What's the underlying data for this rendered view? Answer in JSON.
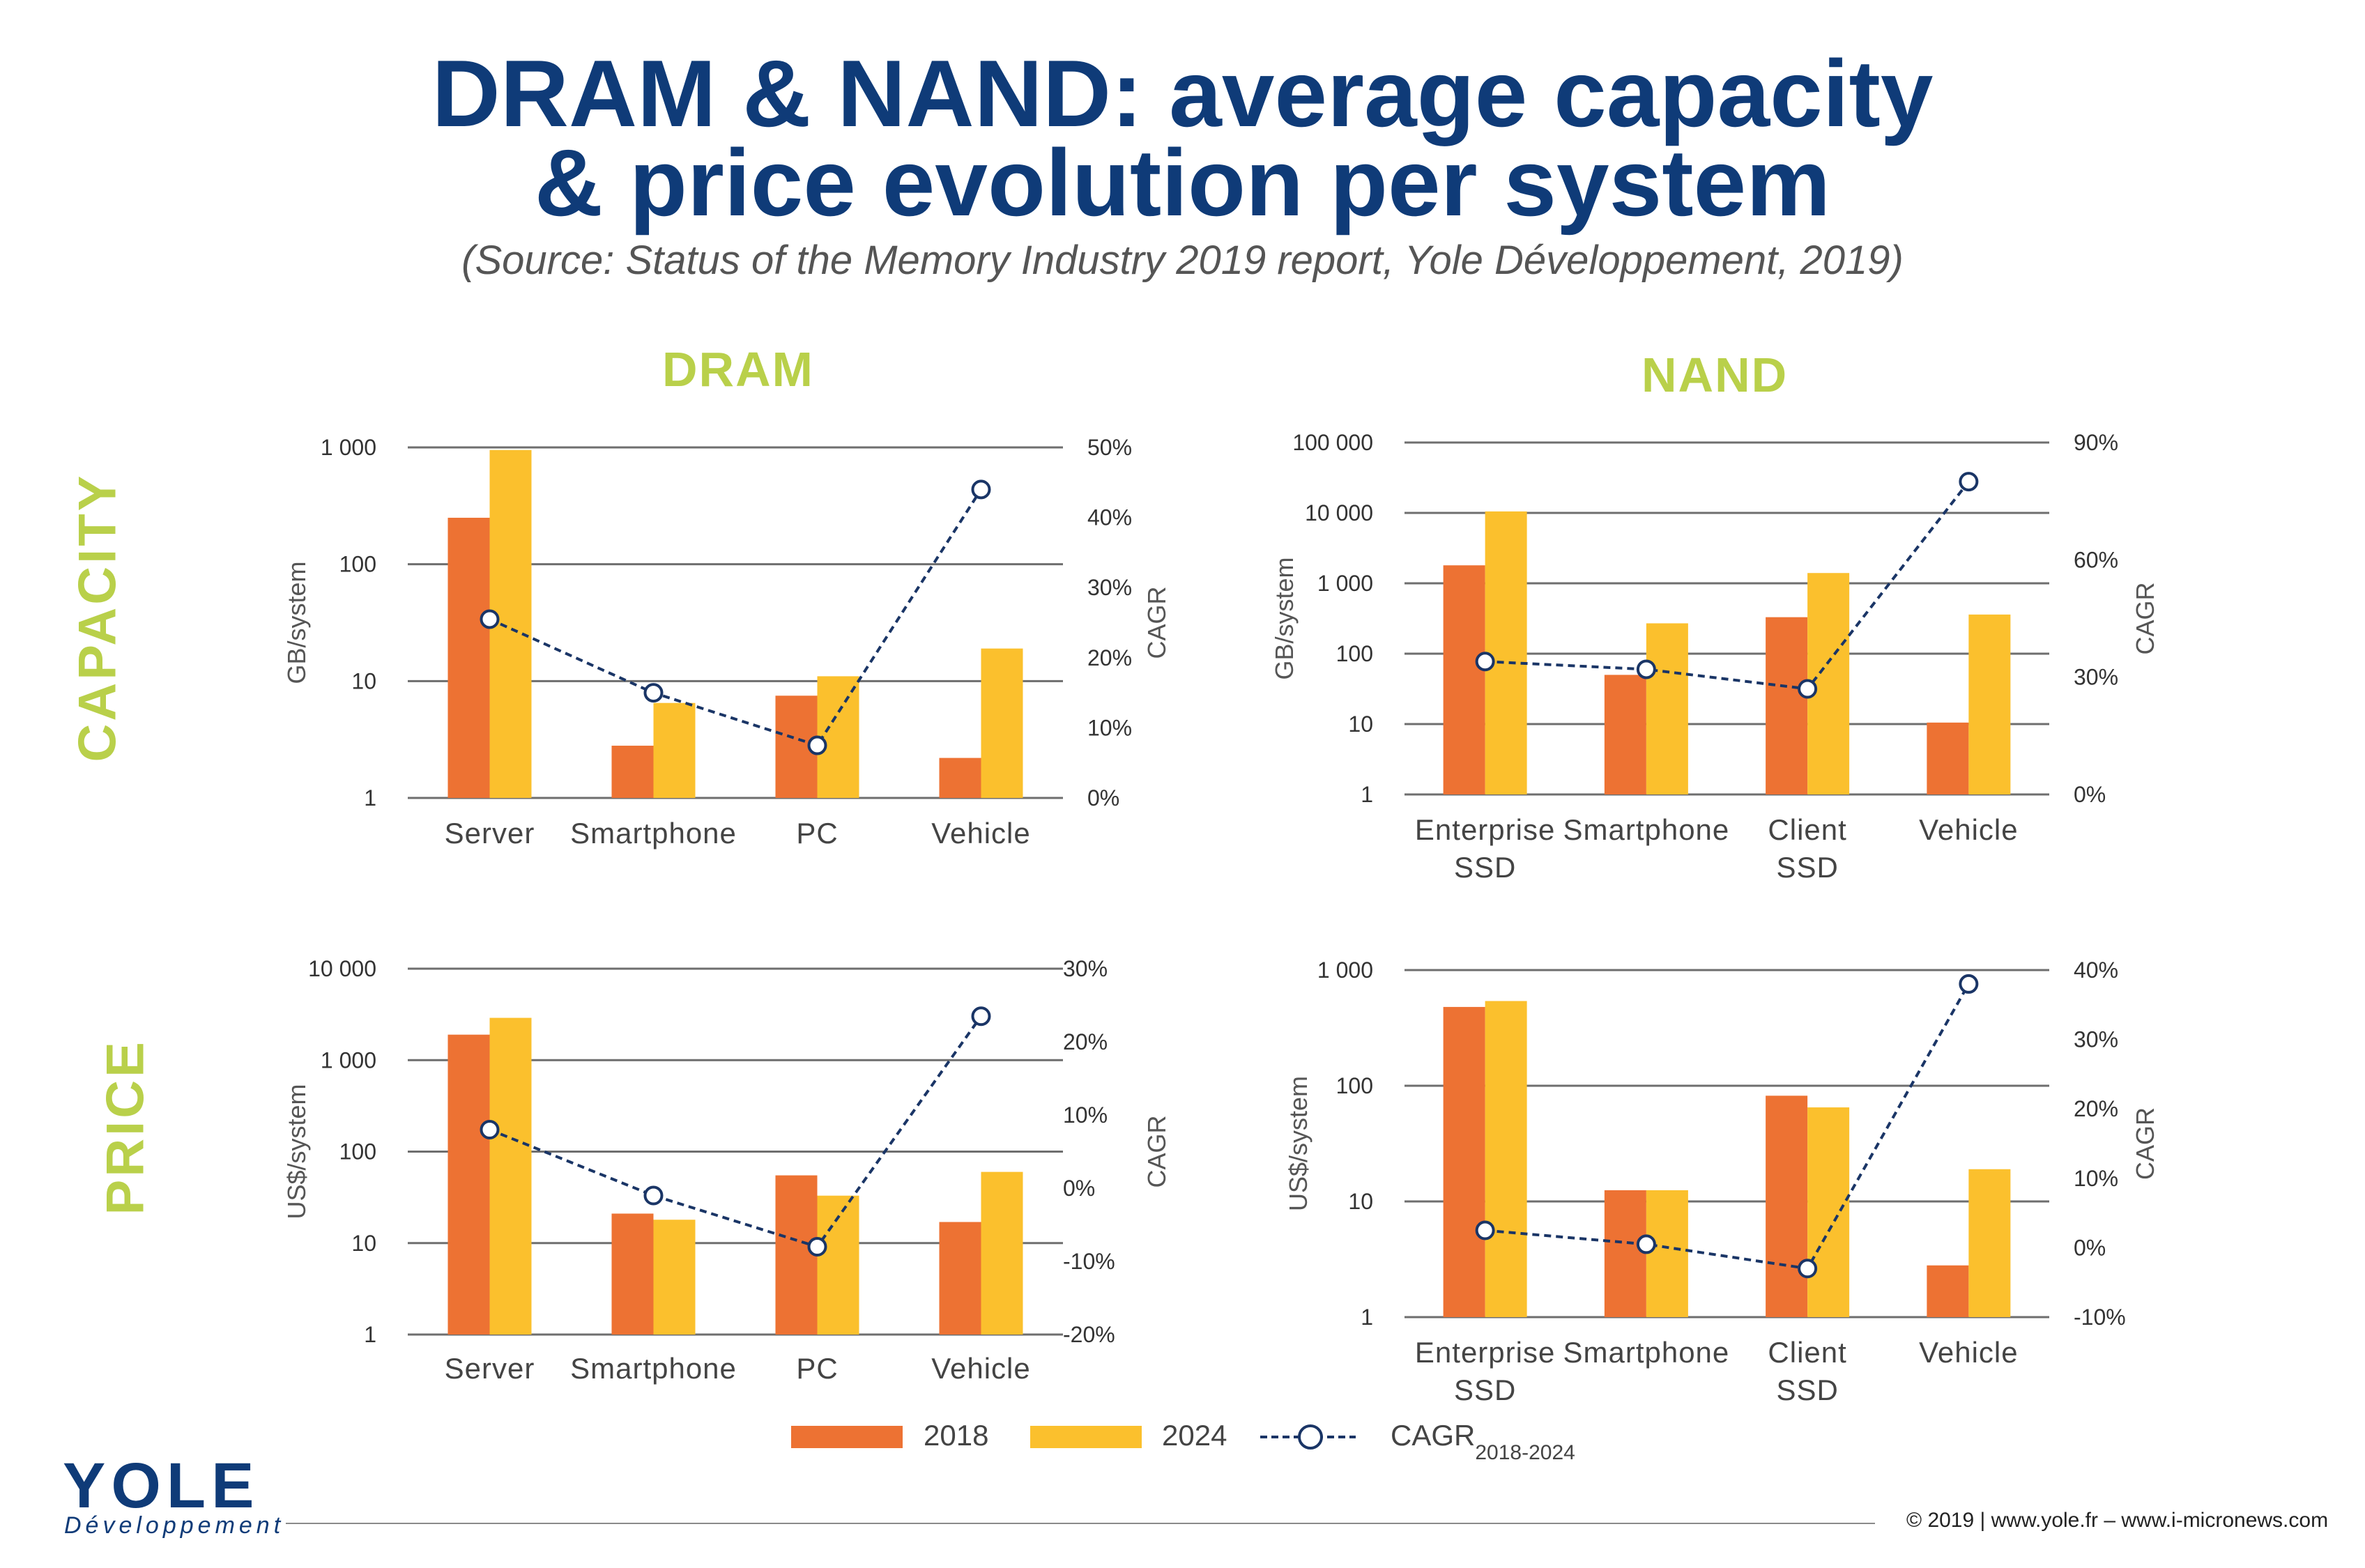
{
  "header": {
    "title_line1": "DRAM & NAND: average capacity",
    "title_line2": "& price evolution per system",
    "subtitle": "(Source: Status of the Memory Industry 2019 report, Yole Développement, 2019)"
  },
  "sections": {
    "dram": "DRAM",
    "nand": "NAND"
  },
  "rows": {
    "capacity": "CAPACITY",
    "price": "PRICE"
  },
  "legend": {
    "s2018": "2018",
    "s2024": "2024",
    "cagr": "CAGR",
    "cagr_sub": "2018-2024"
  },
  "footer": {
    "logo": "YOLE",
    "logo_sub": "Développement",
    "credit": "© 2019 | www.yole.fr – www.i-micronews.com"
  },
  "colors": {
    "s2018": "#ed7233",
    "s2024": "#fbc02d",
    "cagr": "#1a3566",
    "title": "#0f3b78",
    "accent": "#b9d04a"
  },
  "chart_data": [
    {
      "id": "dram-capacity",
      "type": "bar",
      "categories": [
        [
          "Server"
        ],
        [
          "Smartphone"
        ],
        [
          "PC"
        ],
        [
          "Vehicle"
        ]
      ],
      "series": [
        {
          "name": "2018",
          "values": [
            250,
            2.8,
            7.5,
            2.2
          ]
        },
        {
          "name": "2024",
          "values": [
            950,
            6.5,
            11,
            19
          ]
        }
      ],
      "cagr": {
        "name": "CAGR",
        "values": [
          0.255,
          0.15,
          0.075,
          0.44
        ]
      },
      "ylabel": "GB/system",
      "y2label": "CAGR",
      "yscale": "log",
      "ylim": [
        1,
        1000
      ],
      "yticks": [
        1,
        10,
        100,
        1000
      ],
      "ytick_labels": [
        "1",
        "10",
        "100",
        "1 000"
      ],
      "y2lim": [
        0,
        0.5
      ],
      "y2ticks": [
        0,
        0.1,
        0.2,
        0.3,
        0.4,
        0.5
      ],
      "y2tick_labels": [
        "0%",
        "10%",
        "20%",
        "30%",
        "40%",
        "50%"
      ]
    },
    {
      "id": "nand-capacity",
      "type": "bar",
      "categories": [
        [
          "Enterprise",
          "SSD"
        ],
        [
          "Smartphone"
        ],
        [
          "Client",
          "SSD"
        ],
        [
          "Vehicle"
        ]
      ],
      "series": [
        {
          "name": "2018",
          "values": [
            1800,
            50,
            330,
            10.5
          ]
        },
        {
          "name": "2024",
          "values": [
            10500,
            270,
            1400,
            360
          ]
        }
      ],
      "cagr": {
        "name": "CAGR",
        "values": [
          0.34,
          0.32,
          0.27,
          0.8
        ]
      },
      "ylabel": "GB/system",
      "y2label": "CAGR",
      "yscale": "log",
      "ylim": [
        1,
        100000
      ],
      "yticks": [
        1,
        10,
        100,
        1000,
        10000,
        100000
      ],
      "ytick_labels": [
        "1",
        "10",
        "100",
        "1 000",
        "10 000",
        "100 000"
      ],
      "y2lim": [
        0,
        0.9
      ],
      "y2ticks": [
        0,
        0.3,
        0.6,
        0.9
      ],
      "y2tick_labels": [
        "0%",
        "30%",
        "60%",
        "90%"
      ]
    },
    {
      "id": "dram-price",
      "type": "bar",
      "categories": [
        [
          "Server"
        ],
        [
          "Smartphone"
        ],
        [
          "PC"
        ],
        [
          "Vehicle"
        ]
      ],
      "series": [
        {
          "name": "2018",
          "values": [
            1900,
            21,
            55,
            17
          ]
        },
        {
          "name": "2024",
          "values": [
            2900,
            18,
            33,
            60
          ]
        }
      ],
      "cagr": {
        "name": "CAGR",
        "values": [
          0.08,
          -0.01,
          -0.08,
          0.235
        ]
      },
      "ylabel": "US$/system",
      "y2label": "CAGR",
      "yscale": "log",
      "ylim": [
        1,
        10000
      ],
      "yticks": [
        1,
        10,
        100,
        1000,
        10000
      ],
      "ytick_labels": [
        "1",
        "10",
        "100",
        "1 000",
        "10 000"
      ],
      "y2lim": [
        -0.2,
        0.3
      ],
      "y2ticks": [
        -0.2,
        -0.1,
        0,
        0.1,
        0.2,
        0.3
      ],
      "y2tick_labels": [
        "-20%",
        "-10%",
        "0%",
        "10%",
        "20%",
        "30%"
      ]
    },
    {
      "id": "nand-price",
      "type": "bar",
      "categories": [
        [
          "Enterprise",
          "SSD"
        ],
        [
          "Smartphone"
        ],
        [
          "Client",
          "SSD"
        ],
        [
          "Vehicle"
        ]
      ],
      "series": [
        {
          "name": "2018",
          "values": [
            480,
            12.5,
            82,
            2.8
          ]
        },
        {
          "name": "2024",
          "values": [
            540,
            12.5,
            65,
            19
          ]
        }
      ],
      "cagr": {
        "name": "CAGR",
        "values": [
          0.025,
          0.005,
          -0.03,
          0.38
        ]
      },
      "ylabel": "US$/system",
      "y2label": "CAGR",
      "yscale": "log",
      "ylim": [
        1,
        1000
      ],
      "yticks": [
        1,
        10,
        100,
        1000
      ],
      "ytick_labels": [
        "1",
        "10",
        "100",
        "1 000"
      ],
      "y2lim": [
        -0.1,
        0.4
      ],
      "y2ticks": [
        -0.1,
        0,
        0.1,
        0.2,
        0.3,
        0.4
      ],
      "y2tick_labels": [
        "-10%",
        "0%",
        "10%",
        "20%",
        "30%",
        "40%"
      ]
    }
  ]
}
